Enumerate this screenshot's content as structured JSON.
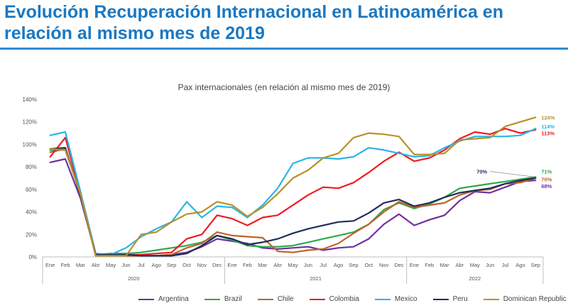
{
  "header": {
    "title_line1": "Evolución Recuperación Internacional en Latinoamérica en",
    "title_line2": "relación al mismo mes de 2019"
  },
  "chart_data": {
    "type": "line",
    "title": "Pax internacionales (en relación al mismo mes de 2019)",
    "categories": [
      "Ene",
      "Feb",
      "Mar",
      "Abr",
      "May",
      "Jun",
      "Jul",
      "Ago",
      "Sep",
      "Oct",
      "Nov",
      "Dec",
      "Ene",
      "Feb",
      "Mar",
      "Abr",
      "May",
      "Jun",
      "Jul",
      "Ago",
      "Sep",
      "Oct",
      "Nov",
      "Dec",
      "Ene",
      "Feb",
      "Mar",
      "Abr",
      "May",
      "Jun",
      "Jul",
      "Ago",
      "Sep"
    ],
    "years": [
      {
        "label": "2020",
        "start": 0,
        "end": 11
      },
      {
        "label": "2021",
        "start": 12,
        "end": 23
      },
      {
        "label": "2022",
        "start": 24,
        "end": 32
      }
    ],
    "y_ticks": [
      "0%",
      "20%",
      "40%",
      "60%",
      "80%",
      "100%",
      "120%",
      "140%"
    ],
    "ylim": [
      0,
      140
    ],
    "grid": false,
    "legend_position": "bottom",
    "series": [
      {
        "name": "Argentina",
        "color": "#7030a0",
        "end_label": "68%",
        "values": [
          84,
          87,
          52,
          2,
          1,
          1,
          1,
          1,
          2,
          4,
          9,
          16,
          14,
          12,
          8,
          7,
          8,
          9,
          6,
          8,
          9,
          16,
          29,
          38,
          28,
          33,
          37,
          50,
          58,
          57,
          62,
          67,
          68
        ]
      },
      {
        "name": "Brazil",
        "color": "#2eaa4a",
        "end_label": "71%",
        "values": [
          95,
          95,
          56,
          2,
          3,
          3,
          4,
          6,
          8,
          10,
          13,
          19,
          15,
          10,
          9,
          9,
          10,
          13,
          16,
          19,
          22,
          29,
          42,
          48,
          43,
          47,
          53,
          61,
          63,
          65,
          67,
          69,
          71
        ]
      },
      {
        "name": "Chile",
        "color": "#c0632a",
        "end_label": "70%",
        "values": [
          93,
          96,
          55,
          1,
          1,
          1,
          1,
          1,
          2,
          8,
          12,
          22,
          19,
          18,
          17,
          5,
          4,
          6,
          7,
          12,
          21,
          29,
          40,
          49,
          44,
          46,
          48,
          55,
          59,
          60,
          65,
          66,
          70
        ]
      },
      {
        "name": "Colombia",
        "color": "#ee1c24",
        "end_label": "113%",
        "values": [
          89,
          106,
          56,
          1,
          1,
          2,
          2,
          3,
          4,
          16,
          20,
          37,
          34,
          28,
          35,
          37,
          46,
          55,
          62,
          61,
          66,
          75,
          85,
          93,
          85,
          88,
          95,
          105,
          111,
          109,
          114,
          110,
          113
        ]
      },
      {
        "name": "Mexico",
        "color": "#29b5e8",
        "end_label": "114%",
        "values": [
          108,
          111,
          58,
          3,
          2,
          8,
          18,
          25,
          31,
          49,
          35,
          45,
          44,
          35,
          46,
          61,
          83,
          88,
          88,
          87,
          89,
          97,
          95,
          92,
          89,
          90,
          97,
          103,
          107,
          107,
          107,
          108,
          114
        ]
      },
      {
        "name": "Peru",
        "color": "#1f2e5a",
        "end_label": "70%",
        "values": [
          96,
          97,
          55,
          2,
          2,
          2,
          1,
          1,
          1,
          3,
          10,
          19,
          16,
          11,
          13,
          16,
          21,
          25,
          28,
          31,
          32,
          39,
          48,
          51,
          45,
          48,
          53,
          57,
          59,
          61,
          65,
          68,
          70
        ]
      },
      {
        "name": "Dominican Republic",
        "color": "#b8912a",
        "end_label": "124%",
        "values": [
          96,
          95,
          56,
          1,
          1,
          1,
          20,
          22,
          31,
          38,
          40,
          49,
          46,
          36,
          44,
          56,
          70,
          77,
          88,
          92,
          106,
          110,
          109,
          107,
          91,
          91,
          92,
          104,
          105,
          106,
          116,
          120,
          124
        ]
      }
    ]
  }
}
